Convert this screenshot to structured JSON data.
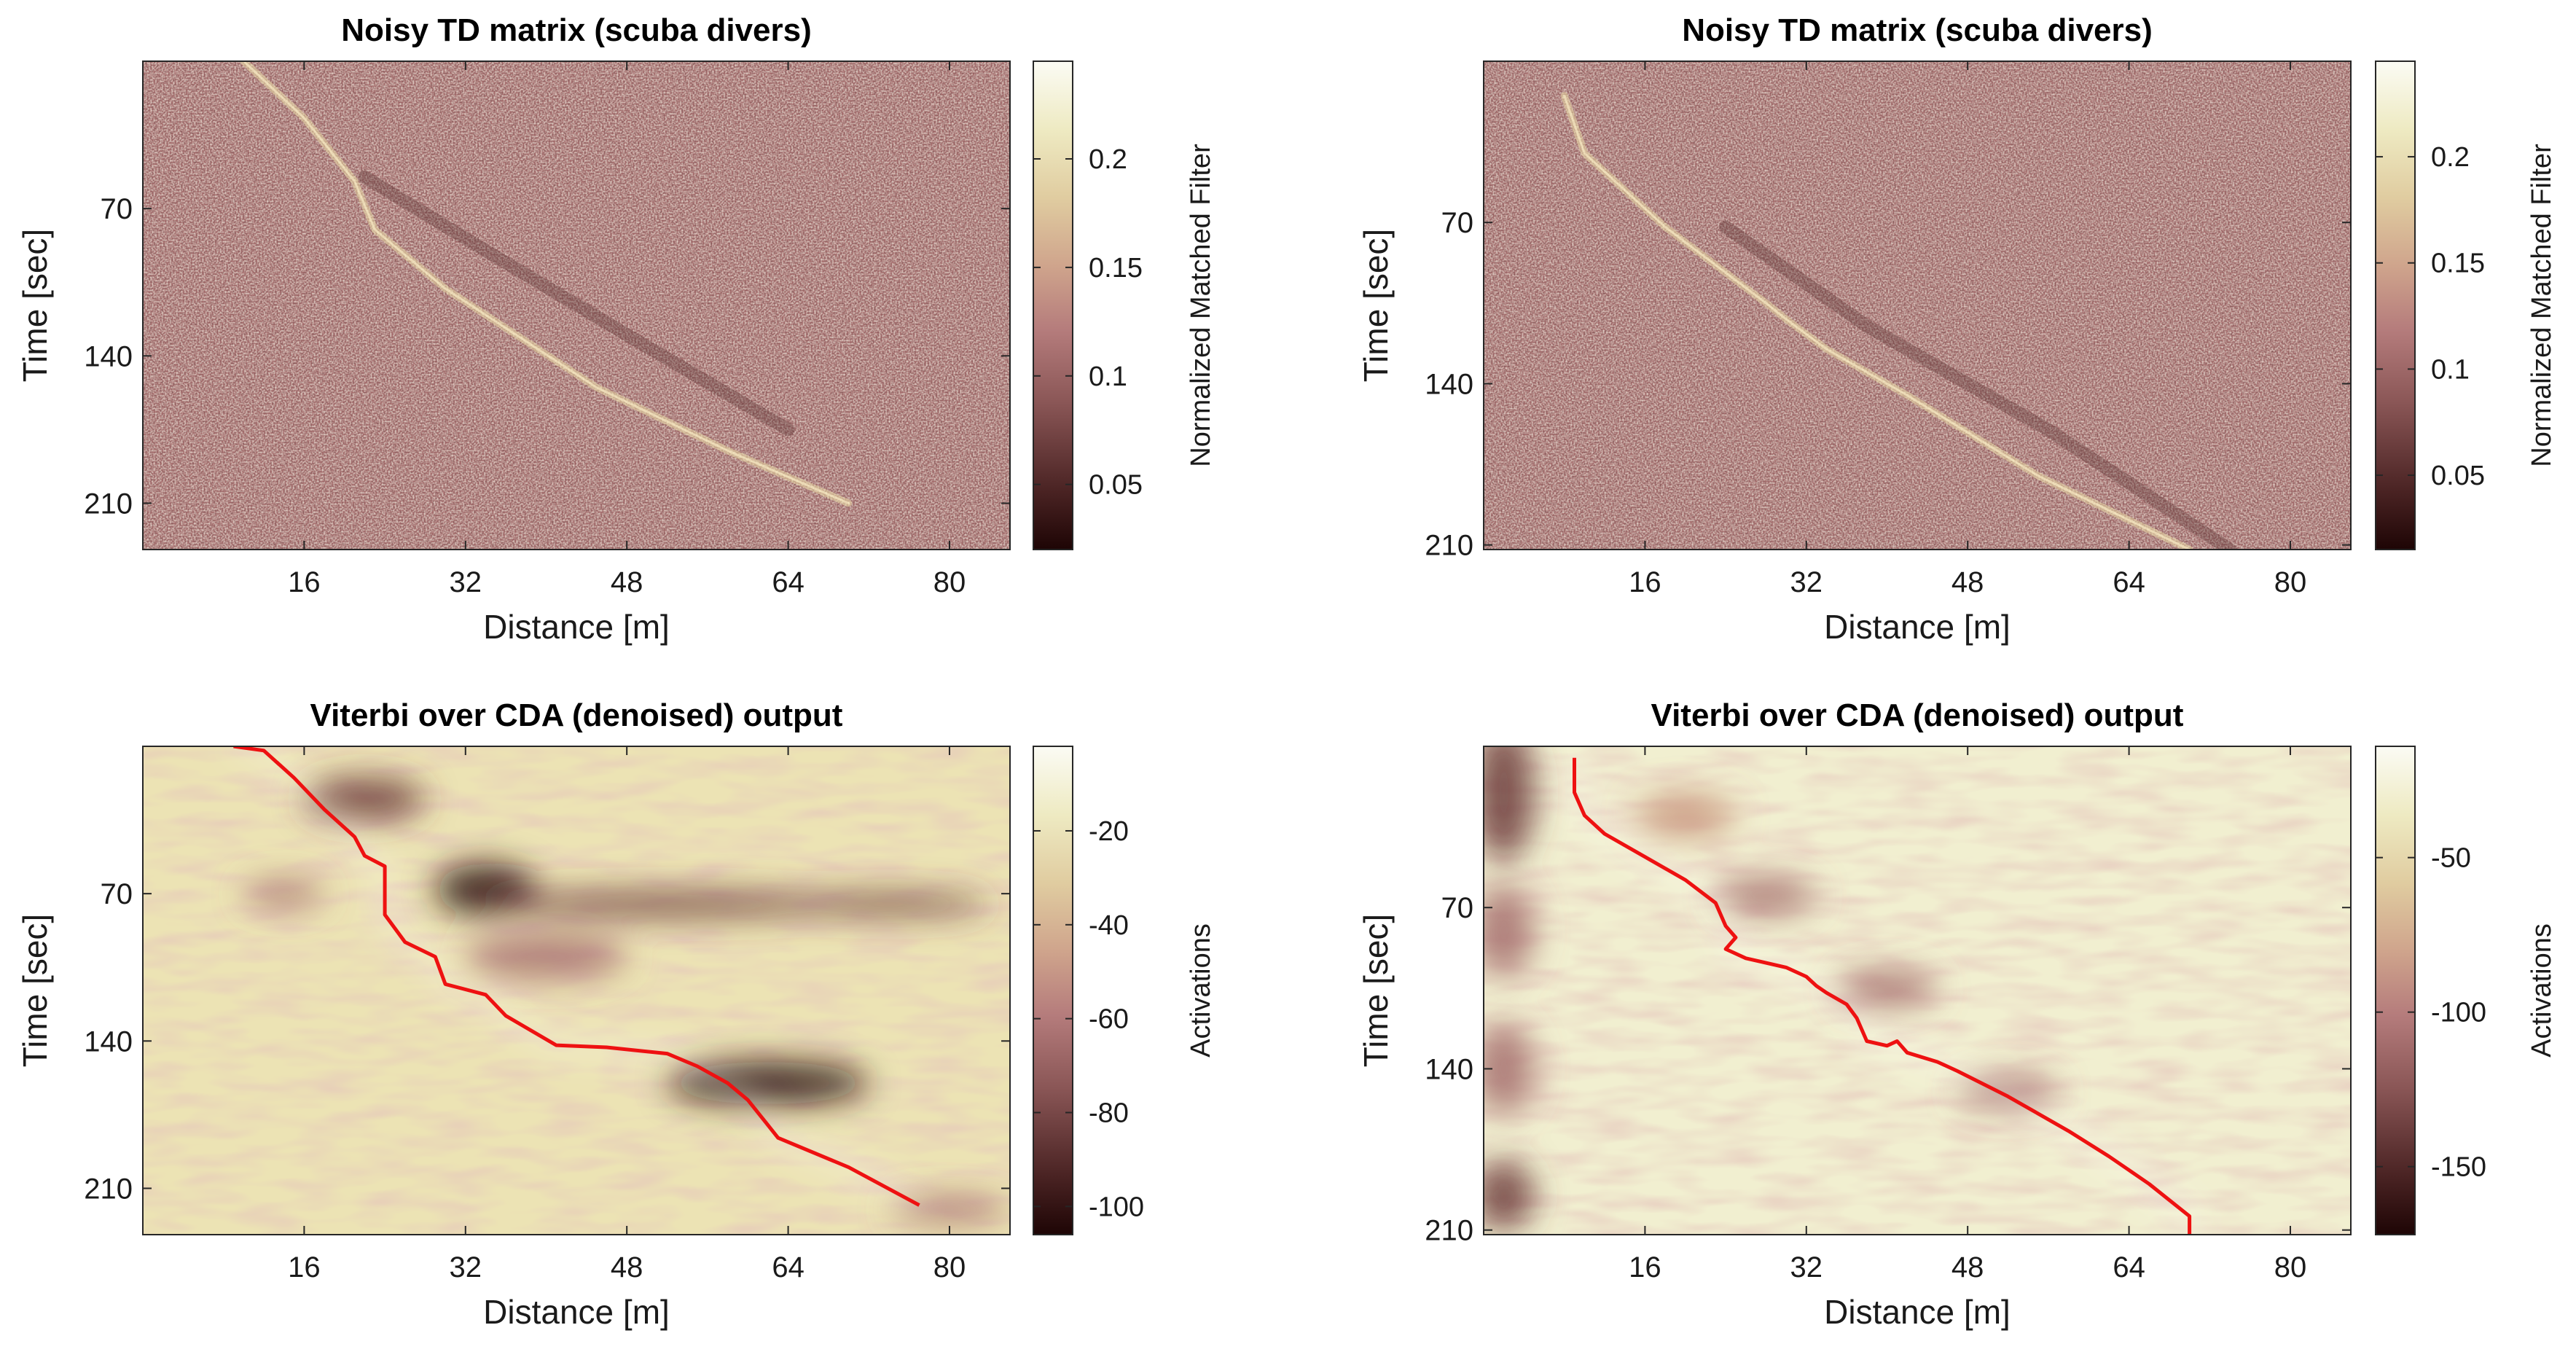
{
  "chart_data": [
    {
      "type": "heatmap",
      "title": "Noisy TD matrix (scuba divers)",
      "xlabel": "Distance [m]",
      "ylabel": "Time [sec]",
      "xticks": [
        16,
        32,
        48,
        64,
        80
      ],
      "yticks": [
        70,
        140,
        210
      ],
      "xlim": [
        0,
        86
      ],
      "ylim": [
        0,
        232
      ],
      "colorbar": {
        "label": "Normalized Matched Filter",
        "ticks": [
          0.05,
          0.1,
          0.15,
          0.2
        ],
        "range": [
          0.02,
          0.245
        ]
      },
      "traces": [
        {
          "name": "diver-track",
          "points": [
            [
              10,
              0
            ],
            [
              16,
              27
            ],
            [
              21,
              57
            ],
            [
              23,
              80
            ],
            [
              30,
              108
            ],
            [
              45,
              155
            ],
            [
              58,
              185
            ],
            [
              70,
              210
            ]
          ]
        }
      ],
      "dark_traces": [
        {
          "name": "dark-band",
          "points": [
            [
              22,
              55
            ],
            [
              34,
              90
            ],
            [
              48,
              130
            ],
            [
              64,
              175
            ]
          ]
        }
      ]
    },
    {
      "type": "heatmap",
      "title": "Noisy TD matrix (scuba divers)",
      "xlabel": "Distance [m]",
      "ylabel": "Time [sec]",
      "xticks": [
        16,
        32,
        48,
        64,
        80
      ],
      "yticks": [
        70,
        140,
        210
      ],
      "xlim": [
        0,
        86
      ],
      "ylim": [
        0,
        212
      ],
      "colorbar": {
        "label": "Normalized Matched Filter",
        "ticks": [
          0.05,
          0.1,
          0.15,
          0.2
        ],
        "range": [
          0.015,
          0.245
        ]
      },
      "traces": [
        {
          "name": "diver-track",
          "points": [
            [
              8,
              15
            ],
            [
              10,
              40
            ],
            [
              18,
              72
            ],
            [
              28,
              105
            ],
            [
              30,
              112
            ],
            [
              34,
              125
            ],
            [
              42,
              145
            ],
            [
              55,
              180
            ],
            [
              70,
              212
            ]
          ]
        }
      ],
      "dark_traces": [
        {
          "name": "dark-band",
          "points": [
            [
              24,
              72
            ],
            [
              38,
              115
            ],
            [
              48,
              140
            ],
            [
              56,
              160
            ],
            [
              74,
              212
            ]
          ]
        }
      ]
    },
    {
      "type": "heatmap",
      "title": "Viterbi over CDA (denoised) output",
      "xlabel": "Distance [m]",
      "ylabel": "Time [sec]",
      "xticks": [
        16,
        32,
        48,
        64,
        80
      ],
      "yticks": [
        70,
        140,
        210
      ],
      "xlim": [
        0,
        86
      ],
      "ylim": [
        0,
        232
      ],
      "colorbar": {
        "label": "Activations",
        "ticks": [
          -20,
          -40,
          -60,
          -80,
          -100
        ],
        "range": [
          -106,
          -2
        ]
      },
      "dark_blobs": [
        {
          "x": 34,
          "y": 68,
          "rx": 5,
          "ry": 12,
          "value": -105
        },
        {
          "x": 22,
          "y": 25,
          "rx": 6,
          "ry": 10,
          "value": -70
        },
        {
          "x": 52,
          "y": 75,
          "rx": 18,
          "ry": 6,
          "value": -70
        },
        {
          "x": 74,
          "y": 75,
          "rx": 10,
          "ry": 5,
          "value": -80
        },
        {
          "x": 62,
          "y": 160,
          "rx": 10,
          "ry": 10,
          "value": -95
        },
        {
          "x": 40,
          "y": 100,
          "rx": 8,
          "ry": 10,
          "value": -55
        },
        {
          "x": 14,
          "y": 70,
          "rx": 4,
          "ry": 6,
          "value": -50
        },
        {
          "x": 80,
          "y": 220,
          "rx": 6,
          "ry": 6,
          "value": -50
        }
      ],
      "viterbi_path": [
        [
          9,
          0
        ],
        [
          12,
          2
        ],
        [
          15,
          15
        ],
        [
          18,
          30
        ],
        [
          21,
          43
        ],
        [
          22,
          52
        ],
        [
          24,
          57
        ],
        [
          24,
          80
        ],
        [
          26,
          93
        ],
        [
          29,
          100
        ],
        [
          30,
          113
        ],
        [
          34,
          118
        ],
        [
          36,
          128
        ],
        [
          41,
          142
        ],
        [
          46,
          143
        ],
        [
          52,
          146
        ],
        [
          55,
          152
        ],
        [
          58,
          160
        ],
        [
          60,
          168
        ],
        [
          62,
          180
        ],
        [
          63,
          186
        ],
        [
          70,
          200
        ],
        [
          77,
          218
        ]
      ]
    },
    {
      "type": "heatmap",
      "title": "Viterbi over CDA (denoised) output",
      "xlabel": "Distance [m]",
      "ylabel": "Time [sec]",
      "xticks": [
        16,
        32,
        48,
        64,
        80
      ],
      "yticks": [
        70,
        140,
        210
      ],
      "xlim": [
        0,
        86
      ],
      "ylim": [
        0,
        212
      ],
      "colorbar": {
        "label": "Activations",
        "ticks": [
          -50,
          -100,
          -150
        ],
        "range": [
          -172,
          -14
        ]
      },
      "dark_blobs": [
        {
          "x": 2,
          "y": 20,
          "rx": 3,
          "ry": 30,
          "value": -120
        },
        {
          "x": 2,
          "y": 80,
          "rx": 3,
          "ry": 20,
          "value": -110
        },
        {
          "x": 2,
          "y": 140,
          "rx": 3,
          "ry": 20,
          "value": -115
        },
        {
          "x": 2,
          "y": 195,
          "rx": 3,
          "ry": 15,
          "value": -130
        },
        {
          "x": 20,
          "y": 30,
          "rx": 5,
          "ry": 10,
          "value": -80
        },
        {
          "x": 28,
          "y": 65,
          "rx": 5,
          "ry": 8,
          "value": -90
        },
        {
          "x": 40,
          "y": 105,
          "rx": 5,
          "ry": 8,
          "value": -110
        },
        {
          "x": 52,
          "y": 150,
          "rx": 5,
          "ry": 7,
          "value": -95
        }
      ],
      "viterbi_path": [
        [
          9,
          5
        ],
        [
          9,
          20
        ],
        [
          10,
          30
        ],
        [
          12,
          38
        ],
        [
          16,
          48
        ],
        [
          20,
          58
        ],
        [
          23,
          68
        ],
        [
          24,
          78
        ],
        [
          25,
          83
        ],
        [
          24,
          88
        ],
        [
          26,
          92
        ],
        [
          30,
          96
        ],
        [
          32,
          100
        ],
        [
          33,
          104
        ],
        [
          34,
          107
        ],
        [
          36,
          112
        ],
        [
          37,
          118
        ],
        [
          38,
          128
        ],
        [
          40,
          130
        ],
        [
          41,
          128
        ],
        [
          42,
          133
        ],
        [
          45,
          137
        ],
        [
          47,
          141
        ],
        [
          52,
          152
        ],
        [
          58,
          167
        ],
        [
          62,
          178
        ],
        [
          66,
          190
        ],
        [
          70,
          204
        ],
        [
          70,
          212
        ]
      ]
    }
  ]
}
